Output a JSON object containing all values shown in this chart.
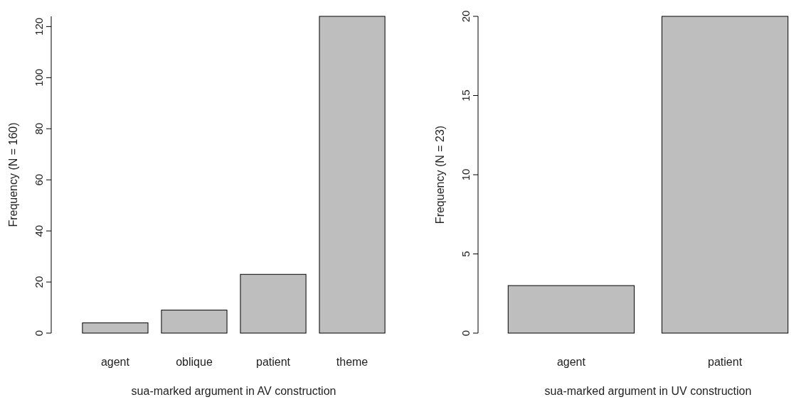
{
  "chart_data": [
    {
      "type": "bar",
      "xlabel": "sua-marked argument in AV construction",
      "ylabel": "Frequency (N = 160)",
      "categories": [
        "agent",
        "oblique",
        "patient",
        "theme"
      ],
      "values": [
        4,
        9,
        23,
        124
      ],
      "color": "#bebebe",
      "ylim": [
        0,
        124
      ],
      "yticks": [
        0,
        20,
        40,
        60,
        80,
        100,
        120
      ],
      "grid": false
    },
    {
      "type": "bar",
      "xlabel": "sua-marked argument in UV construction",
      "ylabel": "Frequency (N = 23)",
      "categories": [
        "agent",
        "patient"
      ],
      "values": [
        3,
        20
      ],
      "color": "#bebebe",
      "ylim": [
        0,
        20
      ],
      "yticks": [
        0,
        5,
        10,
        15,
        20
      ],
      "grid": false
    }
  ]
}
